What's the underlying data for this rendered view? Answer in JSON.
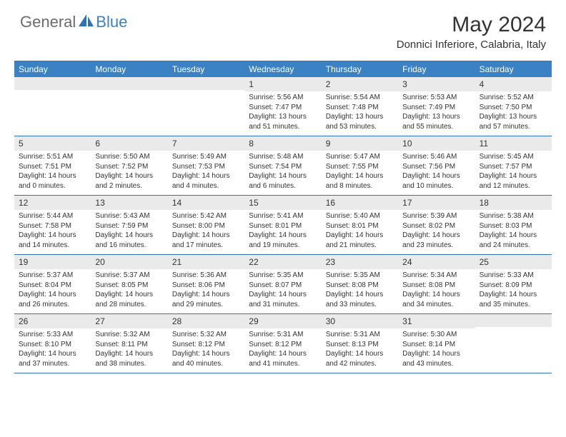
{
  "brand": {
    "general": "General",
    "blue": "Blue"
  },
  "title": "May 2024",
  "location": "Donnici Inferiore, Calabria, Italy",
  "day_headers": [
    "Sunday",
    "Monday",
    "Tuesday",
    "Wednesday",
    "Thursday",
    "Friday",
    "Saturday"
  ],
  "colors": {
    "header_bg": "#3b82c4",
    "rule": "#2e74b5",
    "daynum_bg": "#eaeaea",
    "text": "#333333"
  },
  "weeks": [
    [
      {
        "n": "",
        "sr": "",
        "ss": "",
        "dl1": "",
        "dl2": ""
      },
      {
        "n": "",
        "sr": "",
        "ss": "",
        "dl1": "",
        "dl2": ""
      },
      {
        "n": "",
        "sr": "",
        "ss": "",
        "dl1": "",
        "dl2": ""
      },
      {
        "n": "1",
        "sr": "Sunrise: 5:56 AM",
        "ss": "Sunset: 7:47 PM",
        "dl1": "Daylight: 13 hours",
        "dl2": "and 51 minutes."
      },
      {
        "n": "2",
        "sr": "Sunrise: 5:54 AM",
        "ss": "Sunset: 7:48 PM",
        "dl1": "Daylight: 13 hours",
        "dl2": "and 53 minutes."
      },
      {
        "n": "3",
        "sr": "Sunrise: 5:53 AM",
        "ss": "Sunset: 7:49 PM",
        "dl1": "Daylight: 13 hours",
        "dl2": "and 55 minutes."
      },
      {
        "n": "4",
        "sr": "Sunrise: 5:52 AM",
        "ss": "Sunset: 7:50 PM",
        "dl1": "Daylight: 13 hours",
        "dl2": "and 57 minutes."
      }
    ],
    [
      {
        "n": "5",
        "sr": "Sunrise: 5:51 AM",
        "ss": "Sunset: 7:51 PM",
        "dl1": "Daylight: 14 hours",
        "dl2": "and 0 minutes."
      },
      {
        "n": "6",
        "sr": "Sunrise: 5:50 AM",
        "ss": "Sunset: 7:52 PM",
        "dl1": "Daylight: 14 hours",
        "dl2": "and 2 minutes."
      },
      {
        "n": "7",
        "sr": "Sunrise: 5:49 AM",
        "ss": "Sunset: 7:53 PM",
        "dl1": "Daylight: 14 hours",
        "dl2": "and 4 minutes."
      },
      {
        "n": "8",
        "sr": "Sunrise: 5:48 AM",
        "ss": "Sunset: 7:54 PM",
        "dl1": "Daylight: 14 hours",
        "dl2": "and 6 minutes."
      },
      {
        "n": "9",
        "sr": "Sunrise: 5:47 AM",
        "ss": "Sunset: 7:55 PM",
        "dl1": "Daylight: 14 hours",
        "dl2": "and 8 minutes."
      },
      {
        "n": "10",
        "sr": "Sunrise: 5:46 AM",
        "ss": "Sunset: 7:56 PM",
        "dl1": "Daylight: 14 hours",
        "dl2": "and 10 minutes."
      },
      {
        "n": "11",
        "sr": "Sunrise: 5:45 AM",
        "ss": "Sunset: 7:57 PM",
        "dl1": "Daylight: 14 hours",
        "dl2": "and 12 minutes."
      }
    ],
    [
      {
        "n": "12",
        "sr": "Sunrise: 5:44 AM",
        "ss": "Sunset: 7:58 PM",
        "dl1": "Daylight: 14 hours",
        "dl2": "and 14 minutes."
      },
      {
        "n": "13",
        "sr": "Sunrise: 5:43 AM",
        "ss": "Sunset: 7:59 PM",
        "dl1": "Daylight: 14 hours",
        "dl2": "and 16 minutes."
      },
      {
        "n": "14",
        "sr": "Sunrise: 5:42 AM",
        "ss": "Sunset: 8:00 PM",
        "dl1": "Daylight: 14 hours",
        "dl2": "and 17 minutes."
      },
      {
        "n": "15",
        "sr": "Sunrise: 5:41 AM",
        "ss": "Sunset: 8:01 PM",
        "dl1": "Daylight: 14 hours",
        "dl2": "and 19 minutes."
      },
      {
        "n": "16",
        "sr": "Sunrise: 5:40 AM",
        "ss": "Sunset: 8:01 PM",
        "dl1": "Daylight: 14 hours",
        "dl2": "and 21 minutes."
      },
      {
        "n": "17",
        "sr": "Sunrise: 5:39 AM",
        "ss": "Sunset: 8:02 PM",
        "dl1": "Daylight: 14 hours",
        "dl2": "and 23 minutes."
      },
      {
        "n": "18",
        "sr": "Sunrise: 5:38 AM",
        "ss": "Sunset: 8:03 PM",
        "dl1": "Daylight: 14 hours",
        "dl2": "and 24 minutes."
      }
    ],
    [
      {
        "n": "19",
        "sr": "Sunrise: 5:37 AM",
        "ss": "Sunset: 8:04 PM",
        "dl1": "Daylight: 14 hours",
        "dl2": "and 26 minutes."
      },
      {
        "n": "20",
        "sr": "Sunrise: 5:37 AM",
        "ss": "Sunset: 8:05 PM",
        "dl1": "Daylight: 14 hours",
        "dl2": "and 28 minutes."
      },
      {
        "n": "21",
        "sr": "Sunrise: 5:36 AM",
        "ss": "Sunset: 8:06 PM",
        "dl1": "Daylight: 14 hours",
        "dl2": "and 29 minutes."
      },
      {
        "n": "22",
        "sr": "Sunrise: 5:35 AM",
        "ss": "Sunset: 8:07 PM",
        "dl1": "Daylight: 14 hours",
        "dl2": "and 31 minutes."
      },
      {
        "n": "23",
        "sr": "Sunrise: 5:35 AM",
        "ss": "Sunset: 8:08 PM",
        "dl1": "Daylight: 14 hours",
        "dl2": "and 33 minutes."
      },
      {
        "n": "24",
        "sr": "Sunrise: 5:34 AM",
        "ss": "Sunset: 8:08 PM",
        "dl1": "Daylight: 14 hours",
        "dl2": "and 34 minutes."
      },
      {
        "n": "25",
        "sr": "Sunrise: 5:33 AM",
        "ss": "Sunset: 8:09 PM",
        "dl1": "Daylight: 14 hours",
        "dl2": "and 35 minutes."
      }
    ],
    [
      {
        "n": "26",
        "sr": "Sunrise: 5:33 AM",
        "ss": "Sunset: 8:10 PM",
        "dl1": "Daylight: 14 hours",
        "dl2": "and 37 minutes."
      },
      {
        "n": "27",
        "sr": "Sunrise: 5:32 AM",
        "ss": "Sunset: 8:11 PM",
        "dl1": "Daylight: 14 hours",
        "dl2": "and 38 minutes."
      },
      {
        "n": "28",
        "sr": "Sunrise: 5:32 AM",
        "ss": "Sunset: 8:12 PM",
        "dl1": "Daylight: 14 hours",
        "dl2": "and 40 minutes."
      },
      {
        "n": "29",
        "sr": "Sunrise: 5:31 AM",
        "ss": "Sunset: 8:12 PM",
        "dl1": "Daylight: 14 hours",
        "dl2": "and 41 minutes."
      },
      {
        "n": "30",
        "sr": "Sunrise: 5:31 AM",
        "ss": "Sunset: 8:13 PM",
        "dl1": "Daylight: 14 hours",
        "dl2": "and 42 minutes."
      },
      {
        "n": "31",
        "sr": "Sunrise: 5:30 AM",
        "ss": "Sunset: 8:14 PM",
        "dl1": "Daylight: 14 hours",
        "dl2": "and 43 minutes."
      },
      {
        "n": "",
        "sr": "",
        "ss": "",
        "dl1": "",
        "dl2": ""
      }
    ]
  ]
}
